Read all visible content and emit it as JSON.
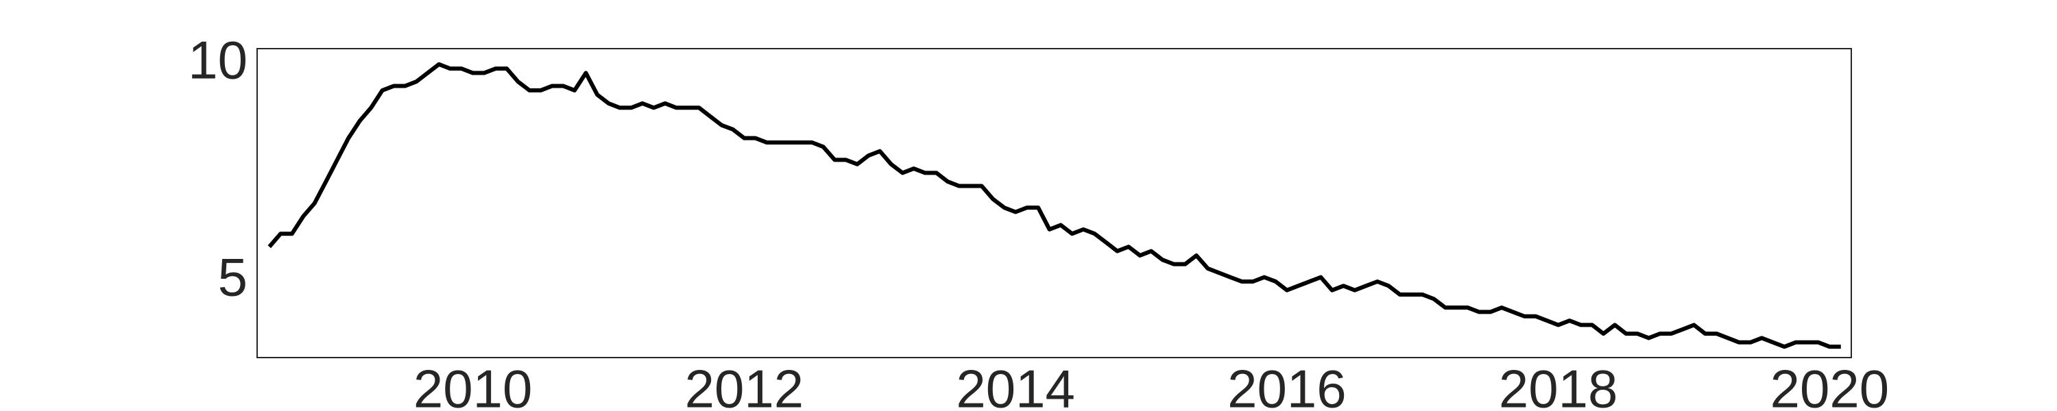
{
  "chart_data": {
    "type": "line",
    "x": [
      2008.5,
      2008.583,
      2008.667,
      2008.75,
      2008.833,
      2008.917,
      2009,
      2009.083,
      2009.167,
      2009.25,
      2009.333,
      2009.417,
      2009.5,
      2009.583,
      2009.667,
      2009.75,
      2009.833,
      2009.917,
      2010,
      2010.083,
      2010.167,
      2010.25,
      2010.333,
      2010.417,
      2010.5,
      2010.583,
      2010.667,
      2010.75,
      2010.833,
      2010.917,
      2011,
      2011.083,
      2011.167,
      2011.25,
      2011.333,
      2011.417,
      2011.5,
      2011.583,
      2011.667,
      2011.75,
      2011.833,
      2011.917,
      2012,
      2012.083,
      2012.167,
      2012.25,
      2012.333,
      2012.417,
      2012.5,
      2012.583,
      2012.667,
      2012.75,
      2012.833,
      2012.917,
      2013,
      2013.083,
      2013.167,
      2013.25,
      2013.333,
      2013.417,
      2013.5,
      2013.583,
      2013.667,
      2013.75,
      2013.833,
      2013.917,
      2014,
      2014.083,
      2014.167,
      2014.25,
      2014.333,
      2014.417,
      2014.5,
      2014.583,
      2014.667,
      2014.75,
      2014.833,
      2014.917,
      2015,
      2015.083,
      2015.167,
      2015.25,
      2015.333,
      2015.417,
      2015.5,
      2015.583,
      2015.667,
      2015.75,
      2015.833,
      2015.917,
      2016,
      2016.083,
      2016.167,
      2016.25,
      2016.333,
      2016.417,
      2016.5,
      2016.583,
      2016.667,
      2016.75,
      2016.833,
      2016.917,
      2017,
      2017.083,
      2017.167,
      2017.25,
      2017.333,
      2017.417,
      2017.5,
      2017.583,
      2017.667,
      2017.75,
      2017.833,
      2017.917,
      2018,
      2018.083,
      2018.167,
      2018.25,
      2018.333,
      2018.417,
      2018.5,
      2018.583,
      2018.667,
      2018.75,
      2018.833,
      2018.917,
      2019,
      2019.083,
      2019.167,
      2019.25,
      2019.333,
      2019.417,
      2019.5,
      2019.583,
      2019.667,
      2019.75,
      2019.833,
      2019.917,
      2020,
      2020.083
    ],
    "series": [
      {
        "color": "#000000",
        "values": [
          5.8,
          6.1,
          6.1,
          6.5,
          6.8,
          7.3,
          7.8,
          8.3,
          8.7,
          9.0,
          9.4,
          9.5,
          9.5,
          9.6,
          9.8,
          10.0,
          9.9,
          9.9,
          9.8,
          9.8,
          9.9,
          9.9,
          9.6,
          9.4,
          9.4,
          9.5,
          9.5,
          9.4,
          9.8,
          9.3,
          9.1,
          9.0,
          9.0,
          9.1,
          9.0,
          9.1,
          9.0,
          9.0,
          9.0,
          8.8,
          8.6,
          8.5,
          8.3,
          8.3,
          8.2,
          8.2,
          8.2,
          8.2,
          8.2,
          8.1,
          7.8,
          7.8,
          7.7,
          7.9,
          8.0,
          7.7,
          7.5,
          7.6,
          7.5,
          7.5,
          7.3,
          7.2,
          7.2,
          7.2,
          6.9,
          6.7,
          6.6,
          6.7,
          6.7,
          6.2,
          6.3,
          6.1,
          6.2,
          6.1,
          5.9,
          5.7,
          5.8,
          5.6,
          5.7,
          5.5,
          5.4,
          5.4,
          5.6,
          5.3,
          5.2,
          5.1,
          5.0,
          5.0,
          5.1,
          5.0,
          4.8,
          4.9,
          5.0,
          5.1,
          4.8,
          4.9,
          4.8,
          4.9,
          5.0,
          4.9,
          4.7,
          4.7,
          4.7,
          4.6,
          4.4,
          4.4,
          4.4,
          4.3,
          4.3,
          4.4,
          4.3,
          4.2,
          4.2,
          4.1,
          4.0,
          4.1,
          4.0,
          4.0,
          3.8,
          4.0,
          3.8,
          3.8,
          3.7,
          3.8,
          3.8,
          3.9,
          4.0,
          3.8,
          3.8,
          3.7,
          3.6,
          3.6,
          3.7,
          3.6,
          3.5,
          3.6,
          3.6,
          3.6,
          3.5,
          3.5
        ]
      }
    ],
    "xlim": [
      2008.41,
      2020.16
    ],
    "ylim": [
      3.25,
      10.36
    ],
    "xticks": [
      2010,
      2012,
      2014,
      2016,
      2018,
      2020
    ],
    "yticks": [
      5,
      10
    ],
    "grid": false
  }
}
